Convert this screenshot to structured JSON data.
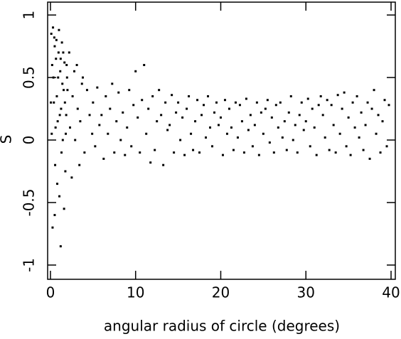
{
  "chart_data": {
    "type": "scatter",
    "xlabel": "angular radius of circle (degrees)",
    "ylabel": "S",
    "xlim": [
      -0.33,
      40.5
    ],
    "ylim": [
      -1.114,
      1.103
    ],
    "xticks": [
      0,
      10,
      20,
      30,
      40
    ],
    "yticks": [
      -1,
      -0.5,
      0,
      0.5,
      1
    ],
    "series": [
      {
        "color": "#000000",
        "x": [
          0.1,
          0.2,
          0.3,
          0.4,
          0.5,
          0.6,
          0.7,
          0.8,
          0.9,
          1.0,
          1.1,
          1.2,
          1.3,
          1.4,
          1.5,
          1.6,
          1.7,
          1.8,
          1.9,
          2.0,
          0.15,
          0.25,
          0.35,
          0.45,
          0.55,
          0.65,
          0.75,
          0.85,
          0.95,
          1.05,
          1.15,
          1.25,
          1.35,
          1.45,
          1.55,
          1.65,
          1.75,
          1.85,
          1.95,
          0.05,
          1.2,
          0.5,
          2.2,
          2.5,
          2.8,
          3.1,
          3.4,
          3.7,
          2.3,
          2.6,
          2.9,
          3.2,
          3.5,
          3.8,
          4.0,
          4.3,
          4.6,
          4.9,
          5,
          5.25,
          5.5,
          5.75,
          6,
          6.25,
          6.5,
          6.75,
          7,
          7.25,
          7.5,
          7.75,
          8,
          8.25,
          8.5,
          8.75,
          9,
          9.25,
          9.5,
          9.75,
          10,
          10.25,
          10.5,
          10.75,
          11,
          11.25,
          11.5,
          11.75,
          12,
          12.25,
          12.5,
          12.75,
          13,
          13.25,
          13.5,
          13.75,
          14,
          14.25,
          14.5,
          14.75,
          15,
          15.25,
          15.5,
          15.75,
          16,
          16.25,
          16.5,
          16.75,
          17,
          17.25,
          17.5,
          17.75,
          18,
          18.25,
          18.5,
          18.75,
          19,
          19.25,
          19.5,
          19.75,
          20,
          20.25,
          20.5,
          20.75,
          21,
          21.25,
          21.5,
          21.75,
          22,
          22.25,
          22.5,
          22.75,
          23,
          23.25,
          23.5,
          23.75,
          24,
          24.25,
          24.5,
          24.75,
          25,
          25.25,
          25.5,
          25.75,
          26,
          26.25,
          26.5,
          26.75,
          27,
          27.25,
          27.5,
          27.75,
          28,
          28.25,
          28.5,
          28.75,
          29,
          29.25,
          29.5,
          29.75,
          30,
          30.25,
          30.5,
          30.75,
          31,
          31.25,
          31.5,
          31.75,
          32,
          32.25,
          32.5,
          32.75,
          33,
          33.25,
          33.5,
          33.75,
          34,
          34.25,
          34.5,
          34.75,
          35,
          35.25,
          35.5,
          35.75,
          36,
          36.25,
          36.5,
          36.75,
          37,
          37.25,
          37.5,
          37.75,
          38,
          38.25,
          38.5,
          38.75,
          39,
          39.25,
          39.5,
          39.75
        ],
        "values": [
          0.85,
          0.6,
          0.9,
          0.3,
          0.75,
          0.1,
          0.8,
          -0.35,
          0.5,
          0.88,
          0.2,
          0.65,
          -0.1,
          0.45,
          0.7,
          -0.55,
          0.3,
          0.05,
          0.6,
          0.4,
          0.05,
          -0.7,
          0.5,
          0.82,
          -0.2,
          0.65,
          0.35,
          0.15,
          0.7,
          -0.45,
          0.55,
          0.25,
          0.78,
          0.0,
          0.4,
          0.62,
          -0.25,
          0.2,
          0.5,
          0.3,
          -0.85,
          -0.6,
          0.7,
          -0.3,
          0.55,
          0.6,
          -0.2,
          0.45,
          0.1,
          0.35,
          0.0,
          0.25,
          0.15,
          0.5,
          -0.1,
          0.4,
          0.2,
          0.05,
          0.3,
          -0.05,
          0.42,
          0.12,
          0.2,
          -0.15,
          0.35,
          0.05,
          0.25,
          0.45,
          -0.1,
          0.15,
          0.38,
          0.0,
          0.22,
          -0.12,
          0.1,
          0.4,
          -0.05,
          0.28,
          0.55,
          0.18,
          -0.1,
          0.32,
          0.6,
          0.05,
          0.25,
          -0.18,
          0.35,
          -0.08,
          0.15,
          0.4,
          0.2,
          -0.2,
          0.3,
          0.08,
          0.12,
          0.36,
          -0.1,
          0.22,
          0.3,
          0.0,
          0.18,
          -0.12,
          0.25,
          0.35,
          0.05,
          -0.08,
          0.15,
          0.32,
          -0.1,
          0.2,
          0.28,
          0.02,
          0.35,
          0.1,
          -0.05,
          0.22,
          0.3,
          0.12,
          0.18,
          -0.12,
          0.32,
          0.05,
          0.25,
          0.1,
          -0.08,
          0.3,
          0.02,
          0.28,
          0.15,
          -0.1,
          0.33,
          0.08,
          0.2,
          -0.05,
          0.12,
          0.3,
          -0.12,
          0.22,
          0.05,
          0.25,
          0.32,
          -0.02,
          0.18,
          -0.1,
          0.28,
          0.1,
          0.3,
          0.02,
          0.15,
          -0.08,
          0.22,
          0.35,
          0.0,
          0.12,
          -0.1,
          0.2,
          0.3,
          0.08,
          0.15,
          0.33,
          -0.05,
          0.25,
          0.1,
          -0.12,
          0.28,
          0.35,
          0.2,
          0.02,
          0.32,
          -0.08,
          0.28,
          0.12,
          -0.1,
          0.36,
          0.05,
          0.25,
          0.38,
          -0.05,
          0.18,
          -0.12,
          0.3,
          0.1,
          0.35,
          0.02,
          0.22,
          -0.08,
          0.12,
          0.3,
          -0.15,
          0.25,
          0.4,
          0.05,
          0.2,
          -0.1,
          0.15,
          0.32,
          -0.05,
          0.28
        ]
      }
    ]
  }
}
